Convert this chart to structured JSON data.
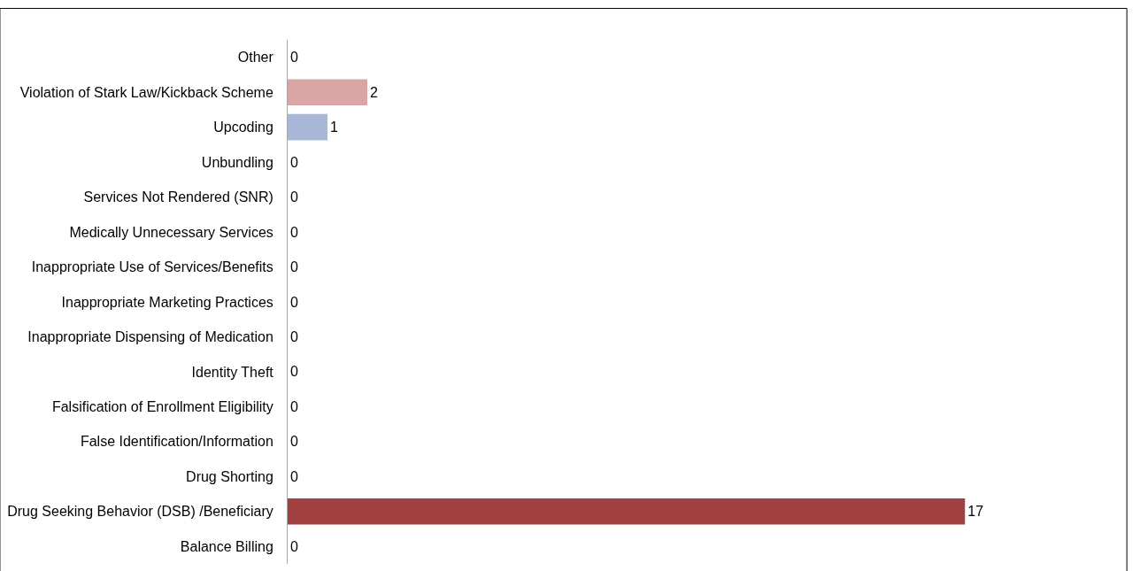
{
  "chart_data": {
    "type": "bar",
    "orientation": "horizontal",
    "data_labels": true,
    "legend": false,
    "categories": [
      "Other",
      "Violation of Stark Law/Kickback Scheme",
      "Upcoding",
      "Unbundling",
      "Services Not Rendered (SNR)",
      "Medically Unnecessary Services",
      "Inappropriate Use of Services/Benefits",
      "Inappropriate Marketing Practices",
      "Inappropriate Dispensing of Medication",
      "Identity Theft",
      "Falsification of Enrollment Eligibility",
      "False Identification/Information",
      "Drug Shorting",
      "Drug Seeking Behavior (DSB) /Beneficiary",
      "Balance Billing"
    ],
    "values": [
      0,
      2,
      1,
      0,
      0,
      0,
      0,
      0,
      0,
      0,
      0,
      0,
      0,
      17,
      0
    ],
    "colors": [
      null,
      "#d9a5a5",
      "#a9b8d8",
      null,
      null,
      null,
      null,
      null,
      null,
      null,
      null,
      null,
      null,
      "#a04040",
      null
    ]
  }
}
